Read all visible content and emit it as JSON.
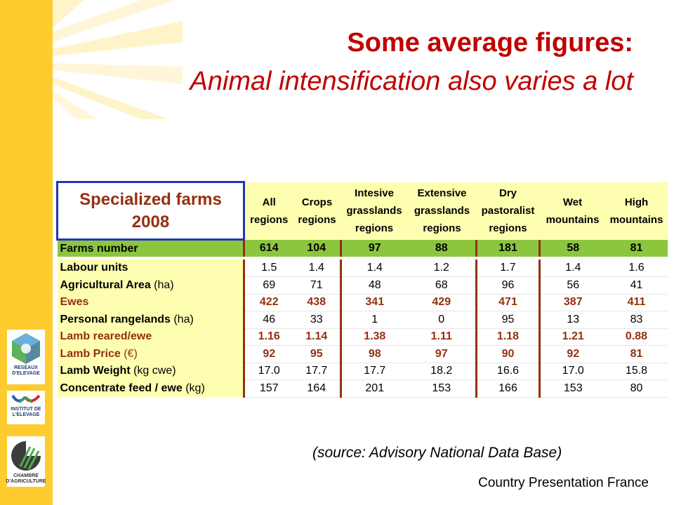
{
  "title_line1": "Some average figures:",
  "title_line2": "Animal intensification also varies a lot",
  "table": {
    "corner_line1": "Specialized farms",
    "corner_line2": "2008",
    "columns": [
      [
        "All",
        "regions"
      ],
      [
        "Crops",
        "regions"
      ],
      [
        "Intesive",
        "grasslands",
        "regions"
      ],
      [
        "Extensive",
        "grasslands",
        "regions"
      ],
      [
        "Dry",
        "pastoralist",
        "regions"
      ],
      [
        "Wet",
        "mountains"
      ],
      [
        "High",
        "mountains"
      ]
    ],
    "rows": [
      {
        "label": "Farms number",
        "unit": "",
        "style": "green",
        "values": [
          "614",
          "104",
          "97",
          "88",
          "181",
          "58",
          "81"
        ]
      },
      {
        "label": "Labour units",
        "unit": "",
        "style": "normal",
        "values": [
          "1.5",
          "1.4",
          "1.4",
          "1.2",
          "1.7",
          "1.4",
          "1.6"
        ]
      },
      {
        "label": "Agricultural Area",
        "unit": " (ha)",
        "style": "normal",
        "values": [
          "69",
          "71",
          "48",
          "68",
          "96",
          "56",
          "41"
        ]
      },
      {
        "label": "Ewes",
        "unit": "",
        "style": "red",
        "values": [
          "422",
          "438",
          "341",
          "429",
          "471",
          "387",
          "411"
        ]
      },
      {
        "label": "Personal rangelands",
        "unit": " (ha)",
        "style": "normal",
        "values": [
          "46",
          "33",
          "1",
          "0",
          "95",
          "13",
          "83"
        ]
      },
      {
        "label": "Lamb reared/ewe",
        "unit": "",
        "style": "red",
        "values": [
          "1.16",
          "1.14",
          "1.38",
          "1.11",
          "1.18",
          "1.21",
          "0.88"
        ]
      },
      {
        "label": "Lamb Price",
        "unit": " (€)",
        "style": "red",
        "values": [
          "92",
          "95",
          "98",
          "97",
          "90",
          "92",
          "81"
        ]
      },
      {
        "label": "Lamb Weight",
        "unit": " (kg cwe)",
        "style": "normal",
        "values": [
          "17.0",
          "17.7",
          "17.7",
          "18.2",
          "16.6",
          "17.0",
          "15.8"
        ]
      },
      {
        "label": "Concentrate feed / ewe",
        "unit": " (kg)",
        "style": "normal",
        "values": [
          "157",
          "164",
          "201",
          "153",
          "166",
          "153",
          "80"
        ]
      }
    ]
  },
  "source_text": "(source: Advisory National Data Base)",
  "footer_text": "Country Presentation France",
  "logos": {
    "reseaux_line1": "RESEAUX",
    "reseaux_line2": "D'ELEVAGE",
    "institut_line1": "INSTITUT DE",
    "institut_line2": "L'ELEVAGE",
    "chambre_line1": "CHAMBRE",
    "chambre_line2": "D'AGRICULTURE"
  },
  "colors": {
    "title": "#c00000",
    "accent_band": "#fecc2e",
    "header_bg": "#fefeb0",
    "green_row": "#8cc63e",
    "brown": "#943010",
    "box_border": "#1f36b8"
  }
}
